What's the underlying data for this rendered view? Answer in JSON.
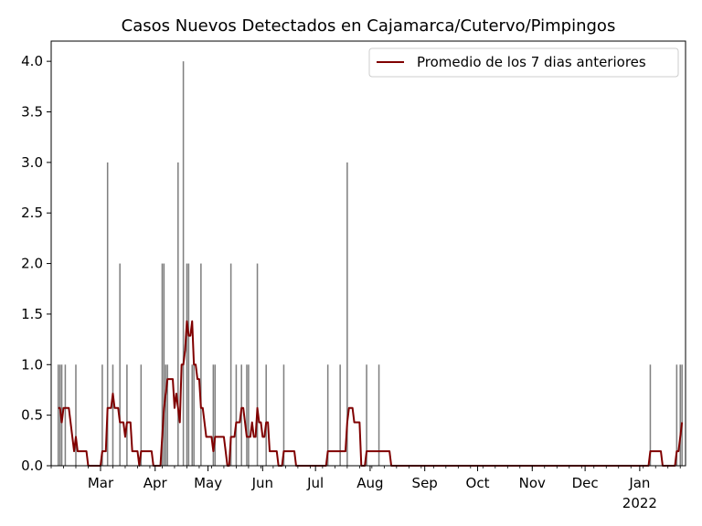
{
  "chart_data": {
    "type": "bar",
    "title": "Casos Nuevos Detectados en Cajamarca/Cutervo/Pimpingos",
    "xlabel": "",
    "ylabel": "",
    "x_range": [
      "2021-02-01",
      "2022-01-27"
    ],
    "ylim": [
      0,
      4.2
    ],
    "y_ticks": [
      0.0,
      0.5,
      1.0,
      1.5,
      2.0,
      2.5,
      3.0,
      3.5,
      4.0
    ],
    "y_tick_labels": [
      "0.0",
      "0.5",
      "1.0",
      "1.5",
      "2.0",
      "2.5",
      "3.0",
      "3.5",
      "4.0"
    ],
    "x_ticks": [
      {
        "date": "2021-03-01",
        "label": "Mar"
      },
      {
        "date": "2021-04-01",
        "label": "Apr"
      },
      {
        "date": "2021-05-01",
        "label": "May"
      },
      {
        "date": "2021-06-01",
        "label": "Jun"
      },
      {
        "date": "2021-07-01",
        "label": "Jul"
      },
      {
        "date": "2021-08-01",
        "label": "Aug"
      },
      {
        "date": "2021-09-01",
        "label": "Sep"
      },
      {
        "date": "2021-10-01",
        "label": "Oct"
      },
      {
        "date": "2021-11-01",
        "label": "Nov"
      },
      {
        "date": "2021-12-01",
        "label": "Dec"
      },
      {
        "date": "2022-01-01",
        "label": "Jan",
        "sublabel": "2022"
      }
    ],
    "grid": false,
    "legend_position": "upper-right",
    "series": [
      {
        "kind": "bar",
        "color": "#808080",
        "points": [
          [
            "2021-02-05",
            1
          ],
          [
            "2021-02-06",
            1
          ],
          [
            "2021-02-07",
            1
          ],
          [
            "2021-02-09",
            1
          ],
          [
            "2021-02-15",
            1
          ],
          [
            "2021-03-02",
            1
          ],
          [
            "2021-03-05",
            3
          ],
          [
            "2021-03-08",
            1
          ],
          [
            "2021-03-12",
            2
          ],
          [
            "2021-03-16",
            1
          ],
          [
            "2021-03-24",
            1
          ],
          [
            "2021-04-05",
            2
          ],
          [
            "2021-04-06",
            2
          ],
          [
            "2021-04-07",
            1
          ],
          [
            "2021-04-08",
            1
          ],
          [
            "2021-04-14",
            3
          ],
          [
            "2021-04-17",
            4
          ],
          [
            "2021-04-19",
            2
          ],
          [
            "2021-04-20",
            2
          ],
          [
            "2021-04-22",
            1
          ],
          [
            "2021-04-23",
            1
          ],
          [
            "2021-04-27",
            2
          ],
          [
            "2021-05-04",
            1
          ],
          [
            "2021-05-05",
            1
          ],
          [
            "2021-05-14",
            2
          ],
          [
            "2021-05-17",
            1
          ],
          [
            "2021-05-20",
            1
          ],
          [
            "2021-05-23",
            1
          ],
          [
            "2021-05-24",
            1
          ],
          [
            "2021-05-29",
            2
          ],
          [
            "2021-06-03",
            1
          ],
          [
            "2021-06-13",
            1
          ],
          [
            "2021-07-08",
            1
          ],
          [
            "2021-07-15",
            1
          ],
          [
            "2021-07-19",
            3
          ],
          [
            "2021-07-30",
            1
          ],
          [
            "2021-08-06",
            1
          ],
          [
            "2022-01-07",
            1
          ],
          [
            "2022-01-22",
            1
          ],
          [
            "2022-01-24",
            1
          ],
          [
            "2022-01-25",
            1
          ]
        ]
      },
      {
        "kind": "line",
        "name": "Promedio de los 7 dias anteriores",
        "color": "#800000",
        "points": [
          [
            "2021-02-05",
            0.571
          ],
          [
            "2021-02-06",
            0.571
          ],
          [
            "2021-02-07",
            0.429
          ],
          [
            "2021-02-08",
            0.571
          ],
          [
            "2021-02-09",
            0.571
          ],
          [
            "2021-02-10",
            0.571
          ],
          [
            "2021-02-11",
            0.571
          ],
          [
            "2021-02-12",
            0.429
          ],
          [
            "2021-02-13",
            0.286
          ],
          [
            "2021-02-14",
            0.143
          ],
          [
            "2021-02-15",
            0.286
          ],
          [
            "2021-02-16",
            0.143
          ],
          [
            "2021-02-17",
            0.143
          ],
          [
            "2021-02-18",
            0.143
          ],
          [
            "2021-02-19",
            0.143
          ],
          [
            "2021-02-20",
            0.143
          ],
          [
            "2021-02-21",
            0.143
          ],
          [
            "2021-02-22",
            0.0
          ],
          [
            "2021-02-23",
            0.0
          ],
          [
            "2021-02-24",
            0.0
          ],
          [
            "2021-02-25",
            0.0
          ],
          [
            "2021-02-26",
            0.0
          ],
          [
            "2021-02-27",
            0.0
          ],
          [
            "2021-02-28",
            0.0
          ],
          [
            "2021-03-01",
            0.0
          ],
          [
            "2021-03-02",
            0.143
          ],
          [
            "2021-03-03",
            0.143
          ],
          [
            "2021-03-04",
            0.143
          ],
          [
            "2021-03-05",
            0.571
          ],
          [
            "2021-03-06",
            0.571
          ],
          [
            "2021-03-07",
            0.571
          ],
          [
            "2021-03-08",
            0.714
          ],
          [
            "2021-03-09",
            0.571
          ],
          [
            "2021-03-10",
            0.571
          ],
          [
            "2021-03-11",
            0.571
          ],
          [
            "2021-03-12",
            0.429
          ],
          [
            "2021-03-13",
            0.429
          ],
          [
            "2021-03-14",
            0.429
          ],
          [
            "2021-03-15",
            0.286
          ],
          [
            "2021-03-16",
            0.429
          ],
          [
            "2021-03-17",
            0.429
          ],
          [
            "2021-03-18",
            0.429
          ],
          [
            "2021-03-19",
            0.143
          ],
          [
            "2021-03-20",
            0.143
          ],
          [
            "2021-03-21",
            0.143
          ],
          [
            "2021-03-22",
            0.143
          ],
          [
            "2021-03-23",
            0.0
          ],
          [
            "2021-03-24",
            0.143
          ],
          [
            "2021-03-25",
            0.143
          ],
          [
            "2021-03-26",
            0.143
          ],
          [
            "2021-03-27",
            0.143
          ],
          [
            "2021-03-28",
            0.143
          ],
          [
            "2021-03-29",
            0.143
          ],
          [
            "2021-03-30",
            0.143
          ],
          [
            "2021-03-31",
            0.0
          ],
          [
            "2021-04-01",
            0.0
          ],
          [
            "2021-04-02",
            0.0
          ],
          [
            "2021-04-03",
            0.0
          ],
          [
            "2021-04-04",
            0.0
          ],
          [
            "2021-04-05",
            0.286
          ],
          [
            "2021-04-06",
            0.571
          ],
          [
            "2021-04-07",
            0.714
          ],
          [
            "2021-04-08",
            0.857
          ],
          [
            "2021-04-09",
            0.857
          ],
          [
            "2021-04-10",
            0.857
          ],
          [
            "2021-04-11",
            0.857
          ],
          [
            "2021-04-12",
            0.571
          ],
          [
            "2021-04-13",
            0.714
          ],
          [
            "2021-04-14",
            0.571
          ],
          [
            "2021-04-15",
            0.429
          ],
          [
            "2021-04-16",
            1.0
          ],
          [
            "2021-04-17",
            1.0
          ],
          [
            "2021-04-18",
            1.143
          ],
          [
            "2021-04-19",
            1.429
          ],
          [
            "2021-04-20",
            1.286
          ],
          [
            "2021-04-21",
            1.286
          ],
          [
            "2021-04-22",
            1.429
          ],
          [
            "2021-04-23",
            1.0
          ],
          [
            "2021-04-24",
            1.0
          ],
          [
            "2021-04-25",
            0.857
          ],
          [
            "2021-04-26",
            0.857
          ],
          [
            "2021-04-27",
            0.571
          ],
          [
            "2021-04-28",
            0.571
          ],
          [
            "2021-04-29",
            0.429
          ],
          [
            "2021-04-30",
            0.286
          ],
          [
            "2021-05-01",
            0.286
          ],
          [
            "2021-05-02",
            0.286
          ],
          [
            "2021-05-03",
            0.286
          ],
          [
            "2021-05-04",
            0.143
          ],
          [
            "2021-05-05",
            0.286
          ],
          [
            "2021-05-06",
            0.286
          ],
          [
            "2021-05-07",
            0.286
          ],
          [
            "2021-05-08",
            0.286
          ],
          [
            "2021-05-09",
            0.286
          ],
          [
            "2021-05-10",
            0.286
          ],
          [
            "2021-05-11",
            0.143
          ],
          [
            "2021-05-12",
            0.0
          ],
          [
            "2021-05-13",
            0.0
          ],
          [
            "2021-05-14",
            0.286
          ],
          [
            "2021-05-15",
            0.286
          ],
          [
            "2021-05-16",
            0.286
          ],
          [
            "2021-05-17",
            0.429
          ],
          [
            "2021-05-18",
            0.429
          ],
          [
            "2021-05-19",
            0.429
          ],
          [
            "2021-05-20",
            0.571
          ],
          [
            "2021-05-21",
            0.571
          ],
          [
            "2021-05-22",
            0.429
          ],
          [
            "2021-05-23",
            0.286
          ],
          [
            "2021-05-24",
            0.286
          ],
          [
            "2021-05-25",
            0.286
          ],
          [
            "2021-05-26",
            0.429
          ],
          [
            "2021-05-27",
            0.286
          ],
          [
            "2021-05-28",
            0.286
          ],
          [
            "2021-05-29",
            0.571
          ],
          [
            "2021-05-30",
            0.429
          ],
          [
            "2021-05-31",
            0.429
          ],
          [
            "2021-06-01",
            0.286
          ],
          [
            "2021-06-02",
            0.286
          ],
          [
            "2021-06-03",
            0.429
          ],
          [
            "2021-06-04",
            0.429
          ],
          [
            "2021-06-05",
            0.143
          ],
          [
            "2021-06-06",
            0.143
          ],
          [
            "2021-06-07",
            0.143
          ],
          [
            "2021-06-08",
            0.143
          ],
          [
            "2021-06-09",
            0.143
          ],
          [
            "2021-06-10",
            0.0
          ],
          [
            "2021-06-11",
            0.0
          ],
          [
            "2021-06-12",
            0.0
          ],
          [
            "2021-06-13",
            0.143
          ],
          [
            "2021-06-14",
            0.143
          ],
          [
            "2021-06-15",
            0.143
          ],
          [
            "2021-06-16",
            0.143
          ],
          [
            "2021-06-17",
            0.143
          ],
          [
            "2021-06-18",
            0.143
          ],
          [
            "2021-06-19",
            0.143
          ],
          [
            "2021-06-20",
            0.0
          ],
          [
            "2021-07-07",
            0.0
          ],
          [
            "2021-07-08",
            0.143
          ],
          [
            "2021-07-18",
            0.143
          ],
          [
            "2021-07-19",
            0.429
          ],
          [
            "2021-07-20",
            0.571
          ],
          [
            "2021-07-21",
            0.571
          ],
          [
            "2021-07-22",
            0.571
          ],
          [
            "2021-07-23",
            0.429
          ],
          [
            "2021-07-26",
            0.429
          ],
          [
            "2021-07-27",
            0.0
          ],
          [
            "2021-07-29",
            0.0
          ],
          [
            "2021-07-30",
            0.143
          ],
          [
            "2021-08-12",
            0.143
          ],
          [
            "2021-08-13",
            0.0
          ],
          [
            "2022-01-06",
            0.0
          ],
          [
            "2022-01-07",
            0.143
          ],
          [
            "2022-01-13",
            0.143
          ],
          [
            "2022-01-14",
            0.0
          ],
          [
            "2022-01-21",
            0.0
          ],
          [
            "2022-01-22",
            0.143
          ],
          [
            "2022-01-23",
            0.143
          ],
          [
            "2022-01-24",
            0.286
          ],
          [
            "2022-01-25",
            0.429
          ]
        ]
      }
    ]
  }
}
